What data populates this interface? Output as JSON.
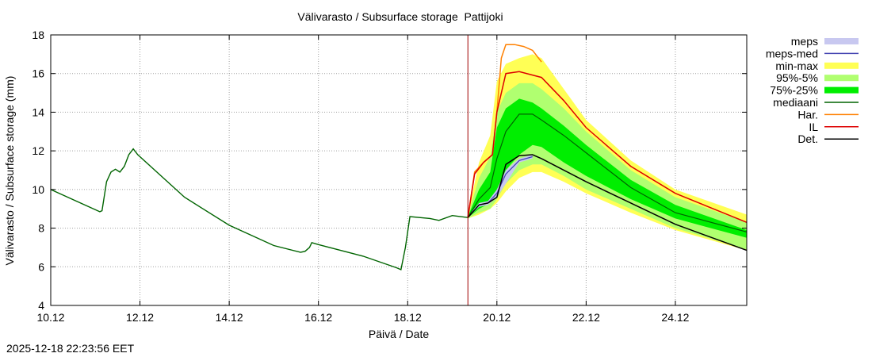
{
  "timestamp": "2025-12-18 22:23:56 EET",
  "chart_data": {
    "type": "line",
    "title": "Välivarasto / Subsurface storage  Pattijoki",
    "xlabel": "Päivä / Date",
    "ylabel": "Välivarasto / Subsurface storage (mm)",
    "xlim": [
      0,
      15.6
    ],
    "ylim": [
      4,
      18
    ],
    "grid": true,
    "x_unit": "days since 10.12",
    "xticks": [
      {
        "x": 0,
        "label": "10.12"
      },
      {
        "x": 2,
        "label": "12.12"
      },
      {
        "x": 4,
        "label": "14.12"
      },
      {
        "x": 6,
        "label": "16.12"
      },
      {
        "x": 8,
        "label": "18.12"
      },
      {
        "x": 10,
        "label": "20.12"
      },
      {
        "x": 12,
        "label": "22.12"
      },
      {
        "x": 14,
        "label": "24.12"
      }
    ],
    "yticks": [
      4,
      6,
      8,
      10,
      12,
      14,
      16,
      18
    ],
    "forecast_start": 9.35,
    "colors": {
      "meps": "#c8c8f0",
      "meps_med": "#4040b0",
      "minmax": "#ffff55",
      "p95_5": "#b0ff70",
      "p75_25": "#00ee00",
      "mediaani": "#006400",
      "har": "#ff8000",
      "il": "#dd0000",
      "det": "#000000",
      "vline": "#a00000"
    },
    "legend": [
      {
        "key": "meps",
        "label": "meps",
        "style": "box"
      },
      {
        "key": "meps_med",
        "label": "meps-med",
        "style": "line"
      },
      {
        "key": "minmax",
        "label": "min-max",
        "style": "box"
      },
      {
        "key": "p95_5",
        "label": "95%-5%",
        "style": "box"
      },
      {
        "key": "p75_25",
        "label": "75%-25%",
        "style": "box"
      },
      {
        "key": "mediaani",
        "label": "mediaani",
        "style": "line"
      },
      {
        "key": "har",
        "label": "Har.",
        "style": "line"
      },
      {
        "key": "il",
        "label": "IL",
        "style": "line"
      },
      {
        "key": "det",
        "label": "Det.",
        "style": "line"
      }
    ],
    "series": {
      "observed": {
        "x": [
          0,
          1.1,
          1.15,
          1.25,
          1.35,
          1.45,
          1.55,
          1.65,
          1.75,
          1.85,
          1.95,
          3.0,
          4.0,
          5.0,
          5.6,
          5.7,
          5.8,
          5.85,
          6.0,
          7.0,
          7.75,
          7.85,
          7.95,
          8.05,
          8.5,
          8.7,
          9.0,
          9.35
        ],
        "y": [
          10,
          8.85,
          8.9,
          10.4,
          10.9,
          11.05,
          10.9,
          11.2,
          11.8,
          12.1,
          11.8,
          9.6,
          8.15,
          7.1,
          6.75,
          6.8,
          7.0,
          7.25,
          7.15,
          6.55,
          5.95,
          5.85,
          7.0,
          8.6,
          8.5,
          8.4,
          8.65,
          8.55
        ]
      },
      "minmax": {
        "x": [
          9.35,
          9.6,
          9.85,
          10.0,
          10.2,
          10.5,
          10.8,
          11.0,
          11.5,
          12.0,
          13.0,
          14.0,
          15.6
        ],
        "upper": [
          8.7,
          11.4,
          12.8,
          15.6,
          16.5,
          16.8,
          17.0,
          16.8,
          15.2,
          13.6,
          11.5,
          10.0,
          8.7
        ],
        "lower": [
          8.5,
          8.7,
          9.0,
          9.3,
          9.9,
          10.6,
          10.9,
          10.9,
          10.4,
          9.8,
          8.8,
          7.9,
          6.85
        ]
      },
      "p95_5": {
        "x": [
          9.35,
          9.6,
          9.85,
          10.0,
          10.2,
          10.5,
          10.8,
          11.0,
          11.5,
          12.0,
          13.0,
          14.0,
          15.6
        ],
        "upper": [
          8.65,
          10.6,
          11.7,
          14.0,
          15.0,
          15.5,
          15.5,
          15.2,
          14.2,
          13.0,
          11.0,
          9.6,
          8.3
        ],
        "lower": [
          8.5,
          8.8,
          9.0,
          9.5,
          10.3,
          11.0,
          11.3,
          11.3,
          10.7,
          10.0,
          9.0,
          8.0,
          6.9
        ]
      },
      "p75_25": {
        "x": [
          9.35,
          9.6,
          9.85,
          10.0,
          10.2,
          10.5,
          10.8,
          11.0,
          11.5,
          12.0,
          13.0,
          14.0,
          15.6
        ],
        "upper": [
          8.6,
          10.0,
          10.9,
          13.2,
          14.2,
          14.7,
          14.5,
          14.2,
          13.3,
          12.3,
          10.5,
          9.2,
          7.9
        ],
        "lower": [
          8.55,
          9.0,
          9.3,
          10.0,
          11.0,
          11.8,
          12.3,
          12.2,
          11.4,
          10.7,
          9.5,
          8.5,
          7.5
        ]
      },
      "mediaani": {
        "x": [
          9.35,
          9.6,
          9.85,
          10.0,
          10.2,
          10.5,
          10.8,
          11.0,
          11.5,
          12.0,
          13.0,
          14.0,
          15.6
        ],
        "y": [
          8.55,
          9.5,
          10.1,
          11.6,
          13.0,
          13.9,
          13.9,
          13.6,
          12.8,
          11.9,
          10.1,
          8.8,
          7.8
        ]
      },
      "meps": {
        "x": [
          9.35,
          9.6,
          9.8,
          10.0,
          10.2,
          10.5,
          10.8
        ],
        "upper": [
          8.6,
          9.3,
          9.4,
          10.0,
          11.0,
          11.6,
          11.8
        ],
        "lower": [
          8.55,
          9.1,
          9.2,
          9.6,
          10.3,
          11.4,
          11.6
        ]
      },
      "meps_med": {
        "x": [
          9.35,
          9.6,
          9.8,
          10.0,
          10.2,
          10.5,
          10.8
        ],
        "y": [
          8.55,
          9.2,
          9.3,
          9.8,
          10.8,
          11.5,
          11.7
        ]
      },
      "har": {
        "x": [
          9.35,
          9.5,
          9.7,
          9.9,
          10.0,
          10.1,
          10.2,
          10.4,
          10.6,
          10.8,
          11.0
        ],
        "y": [
          8.55,
          10.9,
          11.4,
          11.8,
          14.0,
          16.8,
          17.5,
          17.5,
          17.4,
          17.2,
          16.6
        ]
      },
      "il": {
        "x": [
          9.35,
          9.5,
          9.7,
          9.9,
          10.0,
          10.2,
          10.5,
          11.0,
          11.5,
          12.0,
          13.0,
          14.0,
          15.6
        ],
        "y": [
          8.55,
          10.8,
          11.4,
          11.8,
          14.0,
          16.0,
          16.1,
          15.8,
          14.6,
          13.2,
          11.2,
          9.8,
          8.3
        ]
      },
      "det": {
        "x": [
          9.35,
          9.6,
          9.8,
          10.0,
          10.2,
          10.5,
          10.8,
          11.0,
          12.0,
          13.0,
          14.0,
          15.6
        ],
        "y": [
          8.55,
          9.2,
          9.3,
          9.6,
          11.3,
          11.75,
          11.8,
          11.6,
          10.4,
          9.3,
          8.2,
          6.85
        ]
      }
    }
  }
}
